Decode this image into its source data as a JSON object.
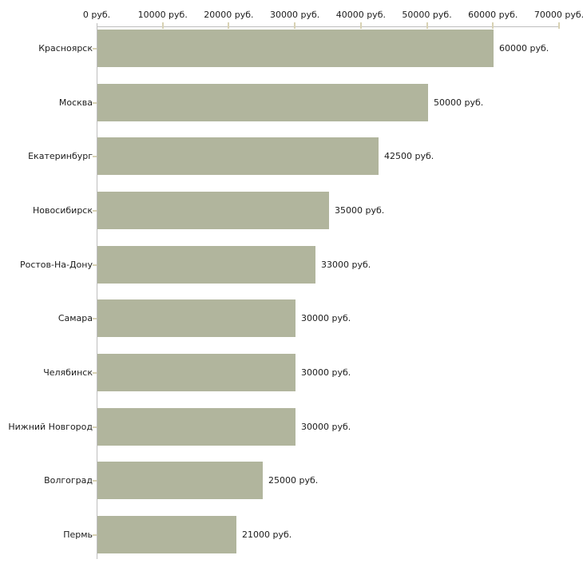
{
  "chart_data": {
    "type": "bar",
    "orientation": "horizontal",
    "title": "",
    "xlabel": "",
    "ylabel": "",
    "unit": "руб.",
    "categories": [
      "Красноярск",
      "Москва",
      "Екатеринбург",
      "Новосибирск",
      "Ростов-На-Дону",
      "Самара",
      "Челябинск",
      "Нижний Новгород",
      "Волгоград",
      "Пермь"
    ],
    "values": [
      60000,
      50000,
      42500,
      35000,
      33000,
      30000,
      30000,
      30000,
      25000,
      21000
    ],
    "value_labels": [
      "60000 руб.",
      "50000 руб.",
      "42500 руб.",
      "35000 руб.",
      "33000 руб.",
      "30000 руб.",
      "30000 руб.",
      "30000 руб.",
      "25000 руб.",
      "21000 руб."
    ],
    "xlim": [
      0,
      70000
    ],
    "x_ticks": [
      0,
      10000,
      20000,
      30000,
      40000,
      50000,
      60000,
      70000
    ],
    "x_tick_labels": [
      "0 руб.",
      "10000 руб.",
      "20000 руб.",
      "30000 руб.",
      "40000 руб.",
      "50000 руб.",
      "60000 руб.",
      "70000 руб."
    ],
    "axis_position": "top",
    "grid": false,
    "legend": false,
    "bar_color": "#b1b59d",
    "axis_color": "#bebebe",
    "tick_color": "#d8d2b4",
    "text_color": "#1c1c1c"
  }
}
